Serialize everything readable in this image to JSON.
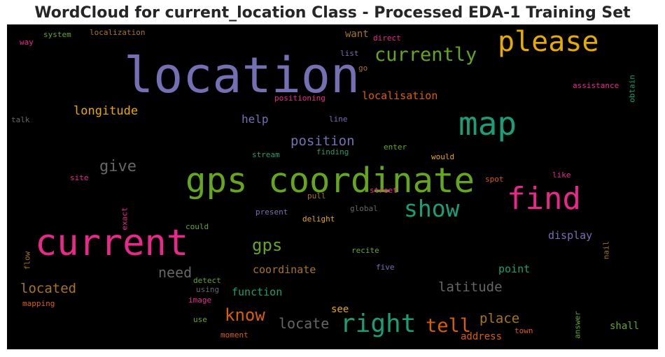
{
  "figure": {
    "title": "WordCloud for current_location Class - Processed EDA-1 Training Set"
  },
  "chart_data": {
    "type": "wordcloud",
    "title": "WordCloud for current_location Class - Processed EDA-1 Training Set",
    "background": "#000000",
    "colormap": [
      "#7570b3",
      "#1b9e77",
      "#d95f02",
      "#e7298a",
      "#66a61e",
      "#e6ab02",
      "#a6761d",
      "#666666"
    ],
    "words": [
      {
        "text": "location",
        "weight": 1.0,
        "color": "#7570b3",
        "orientation": "horizontal"
      },
      {
        "text": "current",
        "weight": 0.76,
        "color": "#e7298a",
        "orientation": "horizontal"
      },
      {
        "text": "gps coordinate",
        "weight": 0.72,
        "color": "#66a61e",
        "orientation": "horizontal"
      },
      {
        "text": "map",
        "weight": 0.64,
        "color": "#1b9e77",
        "orientation": "horizontal"
      },
      {
        "text": "find",
        "weight": 0.6,
        "color": "#e7298a",
        "orientation": "horizontal"
      },
      {
        "text": "please",
        "weight": 0.58,
        "color": "#e6ab02",
        "orientation": "horizontal"
      },
      {
        "text": "right",
        "weight": 0.52,
        "color": "#1b9e77",
        "orientation": "horizontal"
      },
      {
        "text": "show",
        "weight": 0.49,
        "color": "#1b9e77",
        "orientation": "horizontal"
      },
      {
        "text": "currently",
        "weight": 0.4,
        "color": "#66a61e",
        "orientation": "horizontal"
      },
      {
        "text": "tell",
        "weight": 0.4,
        "color": "#d95f02",
        "orientation": "horizontal"
      },
      {
        "text": "gps",
        "weight": 0.36,
        "color": "#66a61e",
        "orientation": "horizontal"
      },
      {
        "text": "know",
        "weight": 0.35,
        "color": "#d95f02",
        "orientation": "horizontal"
      },
      {
        "text": "give",
        "weight": 0.33,
        "color": "#666666",
        "orientation": "horizontal"
      },
      {
        "text": "locate",
        "weight": 0.3,
        "color": "#666666",
        "orientation": "horizontal"
      },
      {
        "text": "need",
        "weight": 0.29,
        "color": "#666666",
        "orientation": "horizontal"
      },
      {
        "text": "located",
        "weight": 0.28,
        "color": "#a6761d",
        "orientation": "horizontal"
      },
      {
        "text": "position",
        "weight": 0.28,
        "color": "#7570b3",
        "orientation": "horizontal"
      },
      {
        "text": "latitude",
        "weight": 0.28,
        "color": "#666666",
        "orientation": "horizontal"
      },
      {
        "text": "place",
        "weight": 0.28,
        "color": "#a6761d",
        "orientation": "horizontal"
      },
      {
        "text": "longitude",
        "weight": 0.25,
        "color": "#e6ab02",
        "orientation": "horizontal"
      },
      {
        "text": "help",
        "weight": 0.23,
        "color": "#7570b3",
        "orientation": "horizontal"
      },
      {
        "text": "localisation",
        "weight": 0.22,
        "color": "#d95f02",
        "orientation": "horizontal"
      },
      {
        "text": "coordinate",
        "weight": 0.22,
        "color": "#a6761d",
        "orientation": "horizontal"
      },
      {
        "text": "function",
        "weight": 0.22,
        "color": "#1b9e77",
        "orientation": "horizontal"
      },
      {
        "text": "display",
        "weight": 0.22,
        "color": "#7570b3",
        "orientation": "horizontal"
      },
      {
        "text": "point",
        "weight": 0.22,
        "color": "#1b9e77",
        "orientation": "horizontal"
      },
      {
        "text": "want",
        "weight": 0.21,
        "color": "#a6761d",
        "orientation": "horizontal"
      },
      {
        "text": "see",
        "weight": 0.21,
        "color": "#e6ab02",
        "orientation": "horizontal"
      },
      {
        "text": "shall",
        "weight": 0.21,
        "color": "#66a61e",
        "orientation": "horizontal"
      },
      {
        "text": "address",
        "weight": 0.2,
        "color": "#d95f02",
        "orientation": "horizontal"
      },
      {
        "text": "localization",
        "weight": 0.14,
        "color": "#a6761d",
        "orientation": "horizontal"
      },
      {
        "text": "system",
        "weight": 0.14,
        "color": "#66a61e",
        "orientation": "horizontal"
      },
      {
        "text": "way",
        "weight": 0.14,
        "color": "#e7298a",
        "orientation": "horizontal"
      },
      {
        "text": "direct",
        "weight": 0.14,
        "color": "#e7298a",
        "orientation": "horizontal"
      },
      {
        "text": "list",
        "weight": 0.14,
        "color": "#7570b3",
        "orientation": "horizontal"
      },
      {
        "text": "go",
        "weight": 0.14,
        "color": "#a6761d",
        "orientation": "horizontal"
      },
      {
        "text": "assistance",
        "weight": 0.14,
        "color": "#e7298a",
        "orientation": "horizontal"
      },
      {
        "text": "obtain",
        "weight": 0.14,
        "color": "#1b9e77",
        "orientation": "vertical"
      },
      {
        "text": "positioning",
        "weight": 0.14,
        "color": "#e7298a",
        "orientation": "horizontal"
      },
      {
        "text": "talk",
        "weight": 0.14,
        "color": "#666666",
        "orientation": "horizontal"
      },
      {
        "text": "line",
        "weight": 0.14,
        "color": "#7570b3",
        "orientation": "horizontal"
      },
      {
        "text": "stream",
        "weight": 0.14,
        "color": "#1b9e77",
        "orientation": "horizontal"
      },
      {
        "text": "finding",
        "weight": 0.14,
        "color": "#1b9e77",
        "orientation": "horizontal"
      },
      {
        "text": "enter",
        "weight": 0.14,
        "color": "#66a61e",
        "orientation": "horizontal"
      },
      {
        "text": "would",
        "weight": 0.14,
        "color": "#e6ab02",
        "orientation": "horizontal"
      },
      {
        "text": "site",
        "weight": 0.14,
        "color": "#e7298a",
        "orientation": "horizontal"
      },
      {
        "text": "spot",
        "weight": 0.14,
        "color": "#d95f02",
        "orientation": "horizontal"
      },
      {
        "text": "like",
        "weight": 0.14,
        "color": "#e7298a",
        "orientation": "horizontal"
      },
      {
        "text": "street",
        "weight": 0.14,
        "color": "#e7298a",
        "orientation": "horizontal"
      },
      {
        "text": "pull",
        "weight": 0.14,
        "color": "#a6761d",
        "orientation": "horizontal"
      },
      {
        "text": "global",
        "weight": 0.14,
        "color": "#666666",
        "orientation": "horizontal"
      },
      {
        "text": "present",
        "weight": 0.14,
        "color": "#7570b3",
        "orientation": "horizontal"
      },
      {
        "text": "exact",
        "weight": 0.14,
        "color": "#e7298a",
        "orientation": "vertical"
      },
      {
        "text": "delight",
        "weight": 0.14,
        "color": "#e6ab02",
        "orientation": "horizontal"
      },
      {
        "text": "could",
        "weight": 0.14,
        "color": "#66a61e",
        "orientation": "horizontal"
      },
      {
        "text": "recite",
        "weight": 0.14,
        "color": "#66a61e",
        "orientation": "horizontal"
      },
      {
        "text": "nail",
        "weight": 0.14,
        "color": "#a6761d",
        "orientation": "vertical"
      },
      {
        "text": "flow",
        "weight": 0.14,
        "color": "#a6761d",
        "orientation": "vertical"
      },
      {
        "text": "five",
        "weight": 0.14,
        "color": "#7570b3",
        "orientation": "horizontal"
      },
      {
        "text": "detect",
        "weight": 0.14,
        "color": "#66a61e",
        "orientation": "horizontal"
      },
      {
        "text": "using",
        "weight": 0.14,
        "color": "#666666",
        "orientation": "horizontal"
      },
      {
        "text": "mapping",
        "weight": 0.14,
        "color": "#d95f02",
        "orientation": "horizontal"
      },
      {
        "text": "image",
        "weight": 0.14,
        "color": "#e7298a",
        "orientation": "horizontal"
      },
      {
        "text": "use",
        "weight": 0.14,
        "color": "#66a61e",
        "orientation": "horizontal"
      },
      {
        "text": "answer",
        "weight": 0.14,
        "color": "#66a61e",
        "orientation": "vertical"
      },
      {
        "text": "town",
        "weight": 0.14,
        "color": "#d95f02",
        "orientation": "horizontal"
      },
      {
        "text": "moment",
        "weight": 0.14,
        "color": "#d95f02",
        "orientation": "horizontal"
      }
    ]
  }
}
